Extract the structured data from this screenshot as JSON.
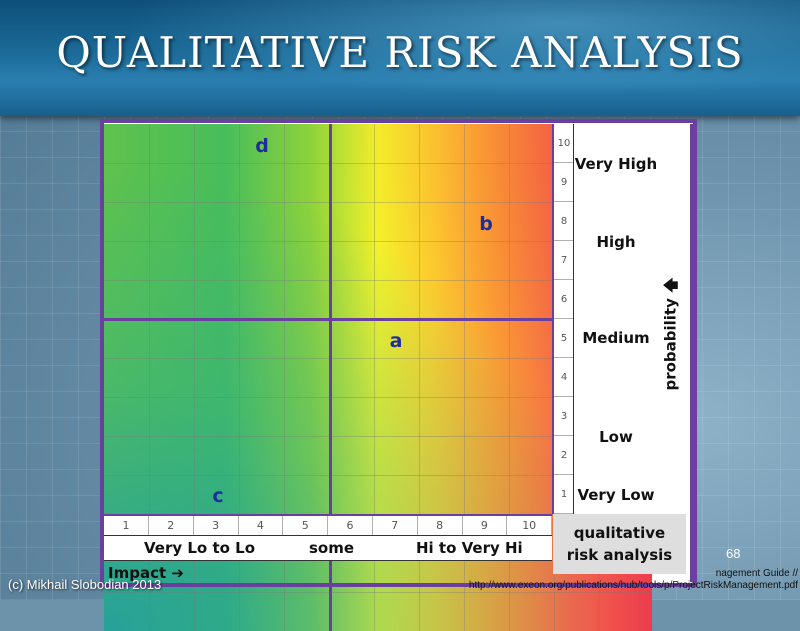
{
  "slide": {
    "title": "QUALITATIVE RISK ANALYSIS",
    "page_number": "68",
    "credit": "(c) Mikhail Slobodian 2013",
    "source_line1": "nagement Guide //",
    "source_line2": "http://www.exeon.org/publications/hub/tools/p/ProjectRiskManagement.pdf"
  },
  "matrix": {
    "zones": {
      "a": "a",
      "b": "b",
      "c": "c",
      "d": "d"
    },
    "probability_scale": [
      "10",
      "9",
      "8",
      "7",
      "6",
      "5",
      "4",
      "3",
      "2",
      "1"
    ],
    "impact_scale": [
      "1",
      "2",
      "3",
      "4",
      "5",
      "6",
      "7",
      "8",
      "9",
      "10"
    ],
    "probability_levels": {
      "very_high": "Very High",
      "high": "High",
      "medium": "Medium",
      "low": "Low",
      "very_low": "Very Low"
    },
    "probability_axis": "probability 🡅",
    "impact_categories": {
      "low": "Very Lo to Lo",
      "mid": "some",
      "high": "Hi to Very Hi"
    },
    "impact_axis": "Impact ➔",
    "corner_label_line1": "qualitative",
    "corner_label_line2": "risk analysis"
  },
  "colors": {
    "frame": "#6b3fa0",
    "zone_letters": "#1f2f9a",
    "header": "#1b6a98"
  }
}
